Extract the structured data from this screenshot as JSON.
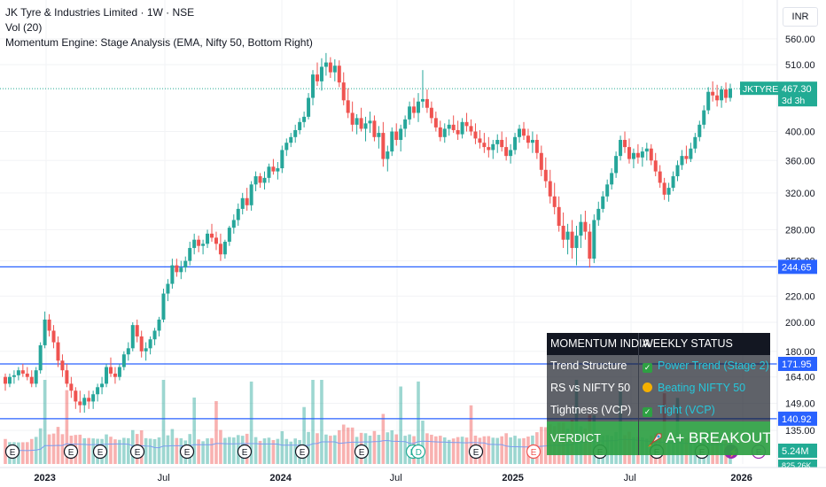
{
  "legend": {
    "title": "JK Tyre & Industries Limited · 1W · NSE",
    "volume_label": "Vol (20)",
    "indicator_label": "Momentum Engine: Stage Analysis (EMA, Nifty 50, Bottom Right)"
  },
  "currency": "INR",
  "price_axis_ticks": [
    "560.00",
    "510.00",
    "400.00",
    "360.00",
    "320.00",
    "280.00",
    "250.00",
    "220.00",
    "200.00",
    "180.00",
    "164.00",
    "149.00",
    "135.00"
  ],
  "time_axis_labels": [
    "2023",
    "Jul",
    "2024",
    "Jul",
    "2025",
    "Jul",
    "2026"
  ],
  "last_price": {
    "ticker": "JKTYRE",
    "price": "467.30",
    "countdown": "3d 3h"
  },
  "level_labels": [
    "244.65",
    "171.95",
    "140.92"
  ],
  "volume_label": "5.24M",
  "volume_label_partial": "825.26K",
  "event_markers": {
    "earnings_letter": "E",
    "dividend_letter": "D"
  },
  "status_table": {
    "header": [
      "MOMENTUM INDIA",
      "WEEKLY STATUS"
    ],
    "rows": [
      {
        "label": "Trend Structure",
        "value": "Power Trend (Stage 2)",
        "icon": "check-icon"
      },
      {
        "label": "RS vs NIFTY 50",
        "value": "Beating NIFTY 50",
        "icon": "bicep-icon"
      },
      {
        "label": "Tightness (VCP)",
        "value": "Tight (VCP)",
        "icon": "check-icon"
      }
    ],
    "verdict_label": "VERDICT",
    "verdict_value": "A+ BREAKOUT"
  },
  "colors": {
    "up": "#26a69a",
    "down": "#ef5350",
    "level_line": "#2962ff",
    "ticker_bg": "#22ab94",
    "volume_ma": "#7b9cf0"
  },
  "chart_data": {
    "type": "candlestick",
    "timeframe": "1W",
    "price_scale": "log",
    "horizontal_levels": [
      244.65,
      171.95,
      140.92
    ],
    "last_price": 467.3,
    "x_start": "2022-11-14",
    "candles": [
      [
        164,
        166,
        156,
        160
      ],
      [
        160,
        166,
        158,
        164
      ],
      [
        164,
        168,
        160,
        165
      ],
      [
        165,
        170,
        162,
        168
      ],
      [
        168,
        172,
        164,
        166
      ],
      [
        166,
        170,
        162,
        164
      ],
      [
        164,
        168,
        158,
        160
      ],
      [
        160,
        170,
        158,
        168
      ],
      [
        168,
        186,
        166,
        184
      ],
      [
        184,
        208,
        182,
        202
      ],
      [
        202,
        206,
        190,
        194
      ],
      [
        194,
        198,
        182,
        186
      ],
      [
        186,
        190,
        170,
        174
      ],
      [
        174,
        178,
        164,
        168
      ],
      [
        168,
        172,
        158,
        160
      ],
      [
        160,
        164,
        152,
        156
      ],
      [
        156,
        158,
        146,
        150
      ],
      [
        150,
        156,
        144,
        148
      ],
      [
        148,
        154,
        144,
        152
      ],
      [
        152,
        156,
        146,
        150
      ],
      [
        150,
        156,
        146,
        154
      ],
      [
        154,
        160,
        150,
        158
      ],
      [
        158,
        164,
        154,
        160
      ],
      [
        160,
        172,
        158,
        170
      ],
      [
        170,
        176,
        164,
        166
      ],
      [
        166,
        170,
        160,
        164
      ],
      [
        164,
        172,
        162,
        170
      ],
      [
        170,
        180,
        168,
        178
      ],
      [
        178,
        186,
        174,
        182
      ],
      [
        182,
        200,
        180,
        198
      ],
      [
        198,
        202,
        186,
        190
      ],
      [
        190,
        194,
        176,
        180
      ],
      [
        180,
        186,
        174,
        182
      ],
      [
        182,
        190,
        178,
        188
      ],
      [
        188,
        196,
        184,
        194
      ],
      [
        194,
        204,
        190,
        202
      ],
      [
        202,
        226,
        200,
        222
      ],
      [
        222,
        234,
        216,
        230
      ],
      [
        230,
        252,
        226,
        246
      ],
      [
        246,
        252,
        236,
        240
      ],
      [
        240,
        250,
        234,
        244
      ],
      [
        244,
        254,
        240,
        250
      ],
      [
        250,
        268,
        246,
        262
      ],
      [
        262,
        276,
        256,
        270
      ],
      [
        270,
        274,
        258,
        264
      ],
      [
        264,
        270,
        256,
        266
      ],
      [
        266,
        280,
        262,
        276
      ],
      [
        276,
        286,
        268,
        272
      ],
      [
        272,
        278,
        260,
        266
      ],
      [
        266,
        276,
        250,
        256
      ],
      [
        256,
        270,
        252,
        268
      ],
      [
        268,
        284,
        264,
        282
      ],
      [
        282,
        296,
        276,
        290
      ],
      [
        290,
        308,
        284,
        302
      ],
      [
        302,
        320,
        296,
        314
      ],
      [
        314,
        326,
        300,
        306
      ],
      [
        306,
        334,
        300,
        330
      ],
      [
        330,
        346,
        322,
        340
      ],
      [
        340,
        344,
        326,
        332
      ],
      [
        332,
        346,
        324,
        338
      ],
      [
        338,
        356,
        332,
        352
      ],
      [
        352,
        362,
        342,
        346
      ],
      [
        346,
        358,
        336,
        350
      ],
      [
        350,
        380,
        344,
        374
      ],
      [
        374,
        390,
        366,
        384
      ],
      [
        384,
        398,
        378,
        392
      ],
      [
        392,
        410,
        384,
        402
      ],
      [
        402,
        420,
        396,
        414
      ],
      [
        414,
        430,
        406,
        422
      ],
      [
        422,
        460,
        418,
        452
      ],
      [
        452,
        500,
        440,
        492
      ],
      [
        492,
        514,
        472,
        480
      ],
      [
        480,
        522,
        464,
        506
      ],
      [
        506,
        532,
        490,
        514
      ],
      [
        514,
        524,
        486,
        496
      ],
      [
        496,
        520,
        480,
        508
      ],
      [
        508,
        518,
        470,
        478
      ],
      [
        478,
        496,
        440,
        448
      ],
      [
        448,
        468,
        420,
        428
      ],
      [
        428,
        446,
        400,
        410
      ],
      [
        410,
        426,
        396,
        420
      ],
      [
        420,
        436,
        400,
        404
      ],
      [
        404,
        422,
        386,
        412
      ],
      [
        412,
        430,
        398,
        416
      ],
      [
        416,
        424,
        386,
        392
      ],
      [
        392,
        408,
        376,
        398
      ],
      [
        398,
        414,
        352,
        362
      ],
      [
        362,
        380,
        346,
        372
      ],
      [
        372,
        406,
        366,
        400
      ],
      [
        400,
        412,
        380,
        388
      ],
      [
        388,
        410,
        372,
        404
      ],
      [
        404,
        424,
        392,
        418
      ],
      [
        418,
        446,
        410,
        438
      ],
      [
        438,
        452,
        420,
        428
      ],
      [
        428,
        460,
        414,
        446
      ],
      [
        446,
        500,
        436,
        450
      ],
      [
        450,
        466,
        428,
        436
      ],
      [
        436,
        446,
        412,
        420
      ],
      [
        420,
        430,
        400,
        406
      ],
      [
        406,
        416,
        386,
        392
      ],
      [
        392,
        412,
        384,
        404
      ],
      [
        404,
        418,
        394,
        410
      ],
      [
        410,
        424,
        398,
        402
      ],
      [
        402,
        416,
        388,
        396
      ],
      [
        396,
        420,
        390,
        414
      ],
      [
        414,
        428,
        400,
        408
      ],
      [
        408,
        418,
        394,
        400
      ],
      [
        400,
        412,
        382,
        390
      ],
      [
        390,
        402,
        376,
        384
      ],
      [
        384,
        398,
        370,
        378
      ],
      [
        378,
        392,
        364,
        374
      ],
      [
        374,
        388,
        362,
        382
      ],
      [
        382,
        396,
        370,
        388
      ],
      [
        388,
        400,
        372,
        378
      ],
      [
        378,
        392,
        360,
        366
      ],
      [
        366,
        382,
        356,
        374
      ],
      [
        374,
        398,
        368,
        392
      ],
      [
        392,
        410,
        384,
        404
      ],
      [
        404,
        414,
        388,
        394
      ],
      [
        394,
        404,
        376,
        384
      ],
      [
        384,
        400,
        370,
        388
      ],
      [
        388,
        396,
        362,
        370
      ],
      [
        370,
        380,
        340,
        348
      ],
      [
        348,
        364,
        326,
        334
      ],
      [
        334,
        348,
        308,
        316
      ],
      [
        316,
        332,
        296,
        304
      ],
      [
        304,
        316,
        278,
        284
      ],
      [
        284,
        298,
        262,
        270
      ],
      [
        270,
        286,
        256,
        278
      ],
      [
        278,
        290,
        252,
        262
      ],
      [
        262,
        284,
        246,
        274
      ],
      [
        274,
        296,
        262,
        288
      ],
      [
        288,
        300,
        270,
        278
      ],
      [
        278,
        286,
        244,
        252
      ],
      [
        252,
        296,
        248,
        290
      ],
      [
        290,
        310,
        284,
        302
      ],
      [
        302,
        322,
        298,
        316
      ],
      [
        316,
        336,
        310,
        330
      ],
      [
        330,
        350,
        324,
        344
      ],
      [
        344,
        372,
        338,
        366
      ],
      [
        366,
        394,
        360,
        388
      ],
      [
        388,
        400,
        370,
        378
      ],
      [
        378,
        390,
        356,
        362
      ],
      [
        362,
        376,
        350,
        370
      ],
      [
        370,
        382,
        356,
        364
      ],
      [
        364,
        378,
        352,
        372
      ],
      [
        372,
        384,
        360,
        376
      ],
      [
        376,
        382,
        354,
        360
      ],
      [
        360,
        370,
        340,
        346
      ],
      [
        346,
        354,
        326,
        332
      ],
      [
        332,
        338,
        312,
        318
      ],
      [
        318,
        332,
        310,
        326
      ],
      [
        326,
        346,
        322,
        340
      ],
      [
        340,
        360,
        334,
        354
      ],
      [
        354,
        374,
        348,
        366
      ],
      [
        366,
        380,
        356,
        362
      ],
      [
        362,
        384,
        358,
        376
      ],
      [
        376,
        398,
        370,
        392
      ],
      [
        392,
        416,
        386,
        410
      ],
      [
        410,
        440,
        404,
        432
      ],
      [
        432,
        470,
        426,
        462
      ],
      [
        462,
        480,
        446,
        456
      ],
      [
        456,
        474,
        438,
        448
      ],
      [
        448,
        472,
        436,
        466
      ],
      [
        466,
        478,
        444,
        452
      ],
      [
        452,
        476,
        446,
        467.3
      ]
    ],
    "volume_ma_length": 20
  }
}
